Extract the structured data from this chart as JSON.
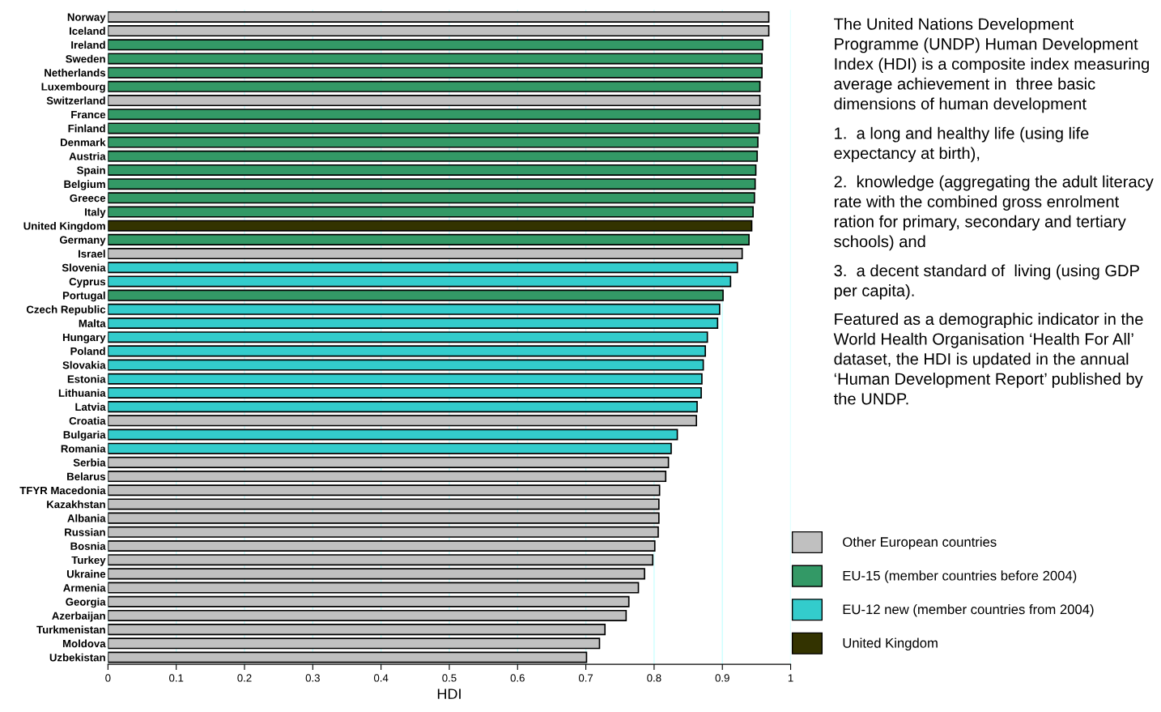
{
  "chart_data": {
    "type": "bar",
    "orientation": "horizontal",
    "stacked": true,
    "categories": [
      "Norway",
      "Iceland",
      "Ireland",
      "Sweden",
      "Netherlands",
      "Luxembourg",
      "Switzerland",
      "France",
      "Finland",
      "Denmark",
      "Austria",
      "Spain",
      "Belgium",
      "Greece",
      "Italy",
      "United Kingdom",
      "Germany",
      "Israel",
      "Slovenia",
      "Cyprus",
      "Portugal",
      "Czech Republic",
      "Malta",
      "Hungary",
      "Poland",
      "Slovakia",
      "Estonia",
      "Lithuania",
      "Latvia",
      "Croatia",
      "Bulgaria",
      "Romania",
      "Serbia",
      "Belarus",
      "TFYR Macedonia",
      "Kazakhstan",
      "Albania",
      "Russian",
      "Bosnia",
      "Turkey",
      "Ukraine",
      "Armenia",
      "Georgia",
      "Azerbaijan",
      "Turkmenistan",
      "Moldova",
      "Uzbekistan"
    ],
    "series": [
      {
        "name": "Other European countries",
        "color": "#c0c0c0",
        "values": [
          0.968,
          0.968,
          null,
          null,
          null,
          null,
          0.955,
          null,
          null,
          null,
          null,
          null,
          null,
          null,
          null,
          null,
          null,
          0.929,
          null,
          null,
          null,
          null,
          null,
          null,
          null,
          null,
          null,
          null,
          null,
          0.862,
          null,
          null,
          0.821,
          0.817,
          0.808,
          0.807,
          0.807,
          0.806,
          0.801,
          0.798,
          0.786,
          0.777,
          0.763,
          0.759,
          0.728,
          0.72,
          0.701
        ]
      },
      {
        "name": "EU-15 (member countries before 2004)",
        "color": "#339966",
        "values": [
          null,
          null,
          0.959,
          0.958,
          0.958,
          0.955,
          null,
          0.955,
          0.954,
          0.952,
          0.951,
          0.949,
          0.948,
          0.947,
          0.945,
          null,
          0.939,
          null,
          null,
          null,
          0.901,
          null,
          null,
          null,
          null,
          null,
          null,
          null,
          null,
          null,
          null,
          null,
          null,
          null,
          null,
          null,
          null,
          null,
          null,
          null,
          null,
          null,
          null,
          null,
          null,
          null,
          null
        ]
      },
      {
        "name": "EU-12 new (member countries from 2004)",
        "color": "#33cccc",
        "values": [
          null,
          null,
          null,
          null,
          null,
          null,
          null,
          null,
          null,
          null,
          null,
          null,
          null,
          null,
          null,
          null,
          null,
          null,
          0.922,
          0.912,
          null,
          0.896,
          0.893,
          0.878,
          0.875,
          0.872,
          0.87,
          0.869,
          0.863,
          null,
          0.834,
          0.825,
          null,
          null,
          null,
          null,
          null,
          null,
          null,
          null,
          null,
          null,
          null,
          null,
          null,
          null,
          null
        ]
      },
      {
        "name": "United Kingdom",
        "color": "#333300",
        "values": [
          null,
          null,
          null,
          null,
          null,
          null,
          null,
          null,
          null,
          null,
          null,
          null,
          null,
          null,
          null,
          0.943,
          null,
          null,
          null,
          null,
          null,
          null,
          null,
          null,
          null,
          null,
          null,
          null,
          null,
          null,
          null,
          null,
          null,
          null,
          null,
          null,
          null,
          null,
          null,
          null,
          null,
          null,
          null,
          null,
          null,
          null,
          null
        ]
      }
    ],
    "xlim": [
      0,
      1
    ],
    "xticks": [
      0,
      0.1,
      0.2,
      0.3,
      0.4,
      0.5,
      0.6,
      0.7,
      0.8,
      0.9,
      1
    ],
    "xlabel": "HDI",
    "grid": "x",
    "legend": "bottom right",
    "annotations": [
      "The United Nations Development Programme (UNDP) Human Development Index (HDI) is a composite index measuring average achievement in  three basic dimensions of human development",
      "1.  a long and healthy life (using life expectancy at birth),",
      "2.  knowledge (aggregating the adult literacy rate with the combined gross enrolment ration for primary, secondary and tertiary schools) and",
      "3.  a decent standard of  living (using GDP per capita).",
      "Featured as a demographic indicator in the World Health Organisation ‘Health For All’ dataset, the HDI is updated in the annual ‘Human Development Report’ published by the UNDP."
    ]
  }
}
